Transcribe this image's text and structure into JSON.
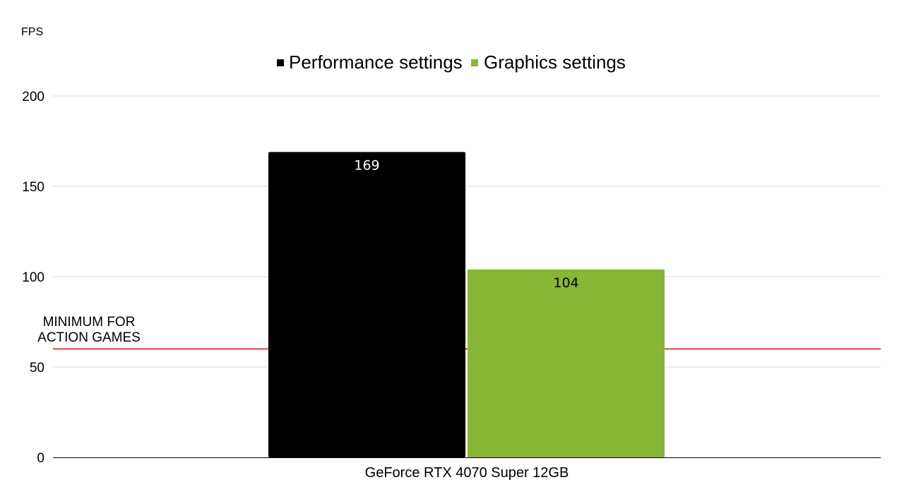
{
  "chart_data": {
    "type": "bar",
    "ylabel": "FPS",
    "xlabel": "",
    "ylim": [
      0,
      200
    ],
    "yticks": [
      0,
      50,
      100,
      150,
      200
    ],
    "grid": true,
    "legend_position": "top-center",
    "categories": [
      "GeForce RTX 4070 Super 12GB"
    ],
    "series": [
      {
        "name": "Performance settings",
        "values": [
          169
        ],
        "color": "#000000",
        "label_color": "#ffffff"
      },
      {
        "name": "Graphics settings",
        "values": [
          104
        ],
        "color": "#86b735",
        "label_color": "#000000"
      }
    ],
    "reference_line": {
      "value": 60,
      "color": "#ff0000",
      "label_lines": [
        "MINIMUM FOR",
        "ACTION GAMES"
      ]
    }
  }
}
